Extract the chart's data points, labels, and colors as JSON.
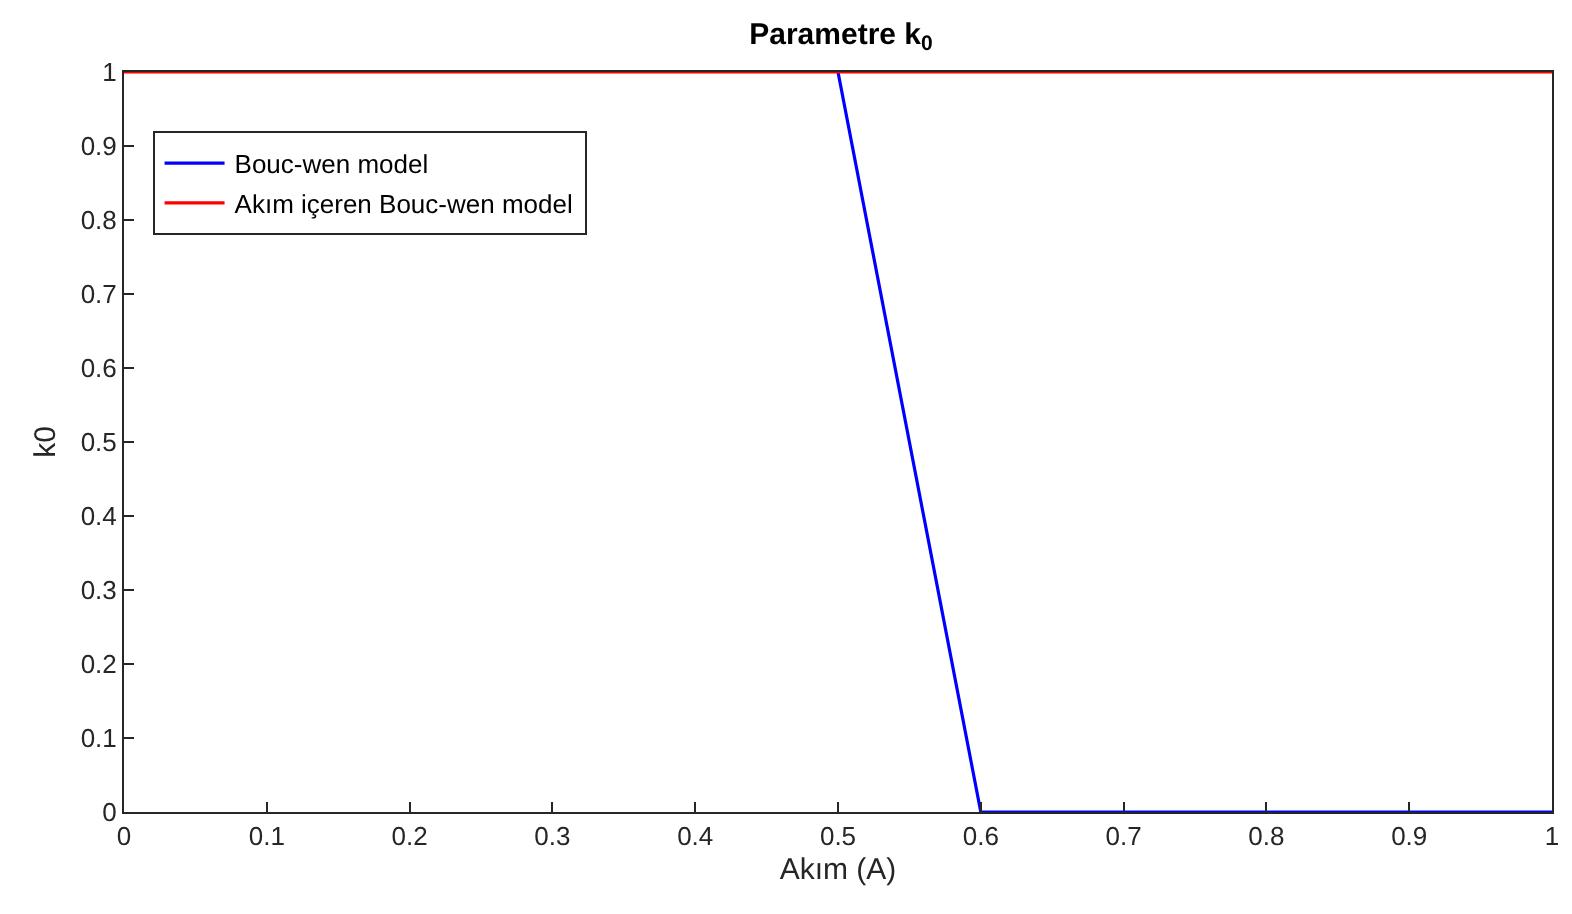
{
  "chart_data": {
    "type": "line",
    "title": "Parametre k$_{0}$",
    "xlabel": "Akım (A)",
    "ylabel": "k0",
    "series": [
      {
        "name": "Bouc-wen model",
        "color": "#0000ff",
        "x": [
          0.5,
          0.6,
          1
        ],
        "values": [
          1,
          0,
          0
        ]
      },
      {
        "name": "Akım içeren Bouc-wen model",
        "color": "#ff0000",
        "x": [
          0,
          1
        ],
        "values": [
          1,
          1
        ]
      }
    ],
    "xlim": [
      0,
      1
    ],
    "xticks": [
      0,
      0.1,
      0.2,
      0.3,
      0.4,
      0.5,
      0.6,
      0.7,
      0.8,
      0.9,
      1
    ],
    "ylim": [
      0,
      1
    ],
    "yticks": [
      0,
      0.1,
      0.2,
      0.3,
      0.4,
      0.5,
      0.6,
      0.7,
      0.8,
      0.9,
      1
    ],
    "legend": "top left",
    "marker": "none",
    "line_style": "solid"
  }
}
